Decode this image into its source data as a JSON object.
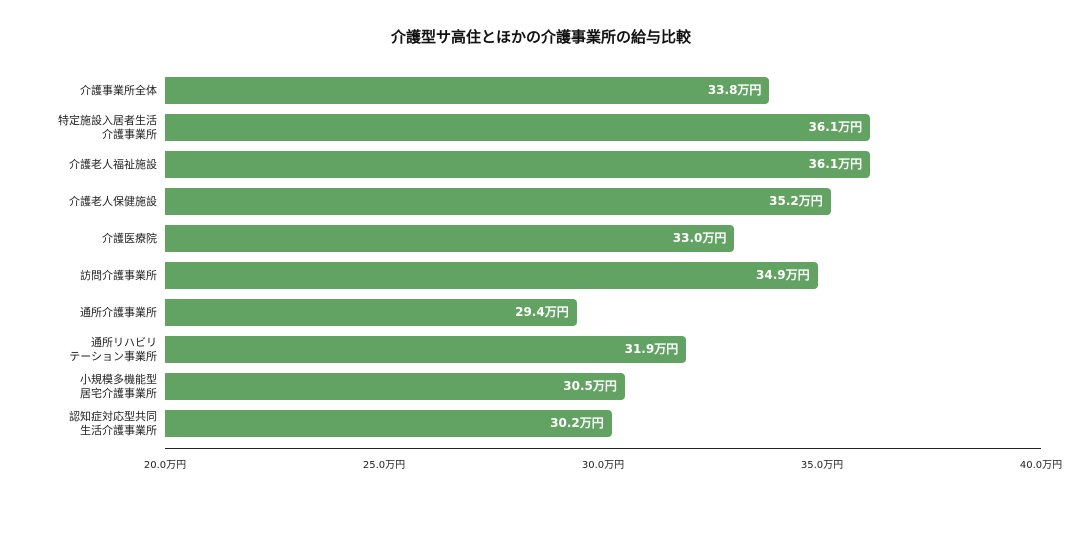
{
  "chart_data": {
    "type": "bar",
    "orientation": "horizontal",
    "title": "介護型サ高住とほかの介護事業所の給与比較",
    "xlabel": "",
    "ylabel": "",
    "xlim": [
      20.0,
      40.0
    ],
    "grid": false,
    "legend": null,
    "bar_color": "#62a262",
    "value_label_color": "#ffffff",
    "unit": "万円",
    "categories": [
      "介護事業所全体",
      "特定施設入居者生活\n介護事業所",
      "介護老人福祉施設",
      "介護老人保健施設",
      "介護医療院",
      "訪問介護事業所",
      "通所介護事業所",
      "通所リハビリ\nテーション事業所",
      "小規模多機能型\n居宅介護事業所",
      "認知症対応型共同\n生活介護事業所"
    ],
    "values": [
      33.8,
      36.1,
      36.1,
      35.2,
      33.0,
      34.9,
      29.4,
      31.9,
      30.5,
      30.2
    ],
    "value_labels": [
      "33.8万円",
      "36.1万円",
      "36.1万円",
      "35.2万円",
      "33.0万円",
      "34.9万円",
      "29.4万円",
      "31.9万円",
      "30.5万円",
      "30.2万円"
    ],
    "x_ticks": [
      20.0,
      25.0,
      30.0,
      35.0,
      40.0
    ],
    "x_tick_labels": [
      "20.0万円",
      "25.0万円",
      "30.0万円",
      "35.0万円",
      "40.0万円"
    ]
  }
}
